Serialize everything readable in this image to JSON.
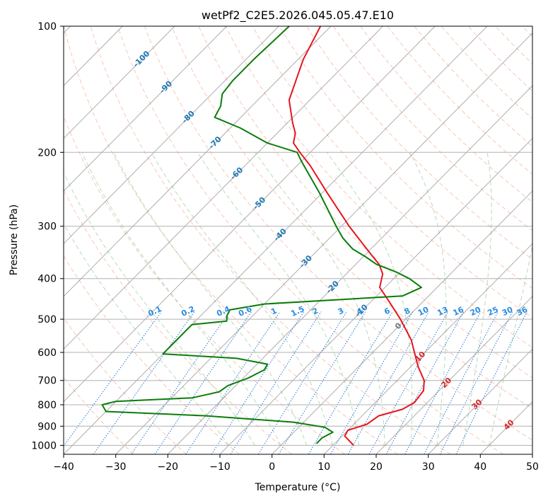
{
  "chart_data": {
    "type": "line",
    "subtype": "skew-T log-P diagram",
    "title": "wetPf2_C2E5.2026.045.05.47.E10",
    "xlabel": "Temperature (°C)",
    "ylabel": "Pressure (hPa)",
    "xlim": [
      -40,
      50
    ],
    "ylim": [
      1050,
      100
    ],
    "x_ticks": [
      -40,
      -30,
      -20,
      -10,
      0,
      10,
      20,
      30,
      40,
      50
    ],
    "y_ticks": [
      100,
      200,
      300,
      400,
      500,
      600,
      700,
      800,
      900,
      1000
    ],
    "grid": true,
    "isotherm_labels": [
      {
        "label": "-100",
        "p": 120
      },
      {
        "label": "-90",
        "p": 140
      },
      {
        "label": "-80",
        "p": 165
      },
      {
        "label": "-70",
        "p": 190
      },
      {
        "label": "-60",
        "p": 225
      },
      {
        "label": "-50",
        "p": 265
      },
      {
        "label": "-40",
        "p": 315
      },
      {
        "label": "-30",
        "p": 365
      },
      {
        "label": "-20",
        "p": 420
      },
      {
        "label": "-10",
        "p": 478
      },
      {
        "label": "0",
        "p": 520
      },
      {
        "label": "10",
        "p": 615
      },
      {
        "label": "20",
        "p": 710
      },
      {
        "label": "30",
        "p": 800
      },
      {
        "label": "40",
        "p": 895
      }
    ],
    "mixing_ratio_labels": [
      "0.1",
      "0.2",
      "0.4",
      "0.6",
      "1",
      "1.5",
      "2",
      "3",
      "4",
      "6",
      "8",
      "10",
      "13",
      "16",
      "20",
      "25",
      "30",
      "36"
    ],
    "series": [
      {
        "name": "Temperature",
        "color": "#e8141c",
        "points": [
          {
            "p": 1000,
            "t": 14.0
          },
          {
            "p": 950,
            "t": 10.5
          },
          {
            "p": 920,
            "t": 10.0
          },
          {
            "p": 890,
            "t": 12.5
          },
          {
            "p": 850,
            "t": 13.2
          },
          {
            "p": 820,
            "t": 16.5
          },
          {
            "p": 790,
            "t": 17.5
          },
          {
            "p": 740,
            "t": 17.0
          },
          {
            "p": 700,
            "t": 15.2
          },
          {
            "p": 650,
            "t": 11.5
          },
          {
            "p": 600,
            "t": 8.0
          },
          {
            "p": 560,
            "t": 5.0
          },
          {
            "p": 500,
            "t": -1.0
          },
          {
            "p": 450,
            "t": -7.0
          },
          {
            "p": 420,
            "t": -11.0
          },
          {
            "p": 390,
            "t": -13.0
          },
          {
            "p": 370,
            "t": -15.5
          },
          {
            "p": 350,
            "t": -19.0
          },
          {
            "p": 300,
            "t": -28.5
          },
          {
            "p": 250,
            "t": -39.0
          },
          {
            "p": 215,
            "t": -47.5
          },
          {
            "p": 200,
            "t": -52.0
          },
          {
            "p": 190,
            "t": -55.0
          },
          {
            "p": 180,
            "t": -56.5
          },
          {
            "p": 170,
            "t": -59.0
          },
          {
            "p": 150,
            "t": -64.0
          },
          {
            "p": 120,
            "t": -69.0
          },
          {
            "p": 100,
            "t": -72.0
          }
        ]
      },
      {
        "name": "Dewpoint",
        "color": "#0a7d0a",
        "points": [
          {
            "p": 990,
            "t": 6.5
          },
          {
            "p": 960,
            "t": 6.5
          },
          {
            "p": 930,
            "t": 7.5
          },
          {
            "p": 905,
            "t": 5.0
          },
          {
            "p": 880,
            "t": -2.0
          },
          {
            "p": 850,
            "t": -20.0
          },
          {
            "p": 830,
            "t": -40.0
          },
          {
            "p": 800,
            "t": -42.0
          },
          {
            "p": 785,
            "t": -40.0
          },
          {
            "p": 770,
            "t": -26.0
          },
          {
            "p": 745,
            "t": -22.0
          },
          {
            "p": 720,
            "t": -21.5
          },
          {
            "p": 690,
            "t": -19.0
          },
          {
            "p": 660,
            "t": -17.5
          },
          {
            "p": 640,
            "t": -18.0
          },
          {
            "p": 620,
            "t": -25.0
          },
          {
            "p": 605,
            "t": -40.0
          },
          {
            "p": 515,
            "t": -40.0
          },
          {
            "p": 505,
            "t": -34.0
          },
          {
            "p": 490,
            "t": -35.0
          },
          {
            "p": 475,
            "t": -35.5
          },
          {
            "p": 460,
            "t": -30.0
          },
          {
            "p": 440,
            "t": -5.0
          },
          {
            "p": 420,
            "t": -3.0
          },
          {
            "p": 400,
            "t": -7.0
          },
          {
            "p": 385,
            "t": -11.0
          },
          {
            "p": 370,
            "t": -16.0
          },
          {
            "p": 355,
            "t": -19.5
          },
          {
            "p": 340,
            "t": -23.5
          },
          {
            "p": 320,
            "t": -27.5
          },
          {
            "p": 300,
            "t": -31.0
          },
          {
            "p": 250,
            "t": -40.5
          },
          {
            "p": 210,
            "t": -50.0
          },
          {
            "p": 200,
            "t": -52.5
          },
          {
            "p": 190,
            "t": -60.0
          },
          {
            "p": 175,
            "t": -68.0
          },
          {
            "p": 165,
            "t": -75.0
          },
          {
            "p": 155,
            "t": -76.0
          },
          {
            "p": 145,
            "t": -78.0
          },
          {
            "p": 135,
            "t": -78.5
          },
          {
            "p": 120,
            "t": -78.5
          },
          {
            "p": 100,
            "t": -78.0
          }
        ]
      }
    ]
  }
}
